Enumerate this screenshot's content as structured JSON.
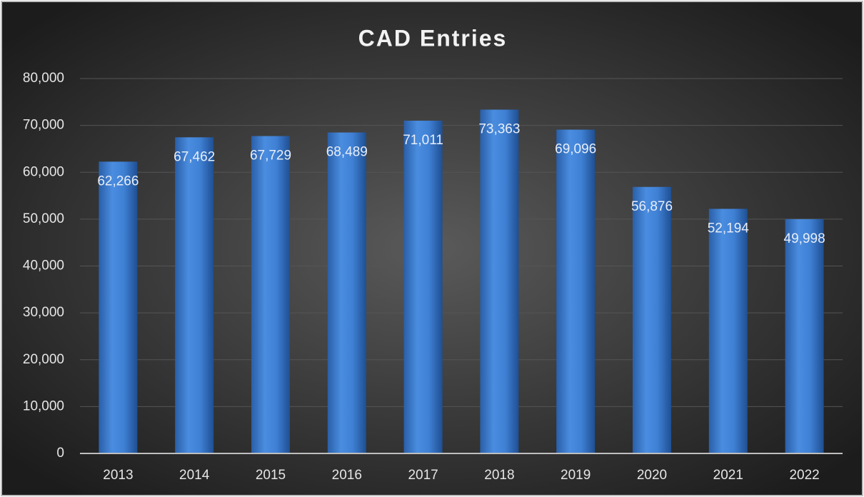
{
  "chart_data": {
    "type": "bar",
    "title": "CAD Entries",
    "categories": [
      "2013",
      "2014",
      "2015",
      "2016",
      "2017",
      "2018",
      "2019",
      "2020",
      "2021",
      "2022"
    ],
    "values": [
      62266,
      67462,
      67729,
      68489,
      71011,
      73363,
      69096,
      56876,
      52194,
      49998
    ],
    "value_labels": [
      "62,266",
      "67,462",
      "67,729",
      "68,489",
      "71,011",
      "73,363",
      "69,096",
      "56,876",
      "52,194",
      "49,998"
    ],
    "color": "#3c7fd6",
    "ylim": [
      0,
      80000
    ],
    "yticks": [
      0,
      {
        "value": 10000,
        "label": "10,000"
      },
      {
        "value": 20000,
        "label": "20,000"
      },
      {
        "value": 30000,
        "label": "30,000"
      },
      {
        "value": 40000,
        "label": "40,000"
      },
      {
        "value": 50000,
        "label": "50,000"
      },
      {
        "value": 60000,
        "label": "60,000"
      },
      {
        "value": 70000,
        "label": "70,000"
      },
      {
        "value": 80000,
        "label": "80,000"
      }
    ],
    "grid": true
  }
}
